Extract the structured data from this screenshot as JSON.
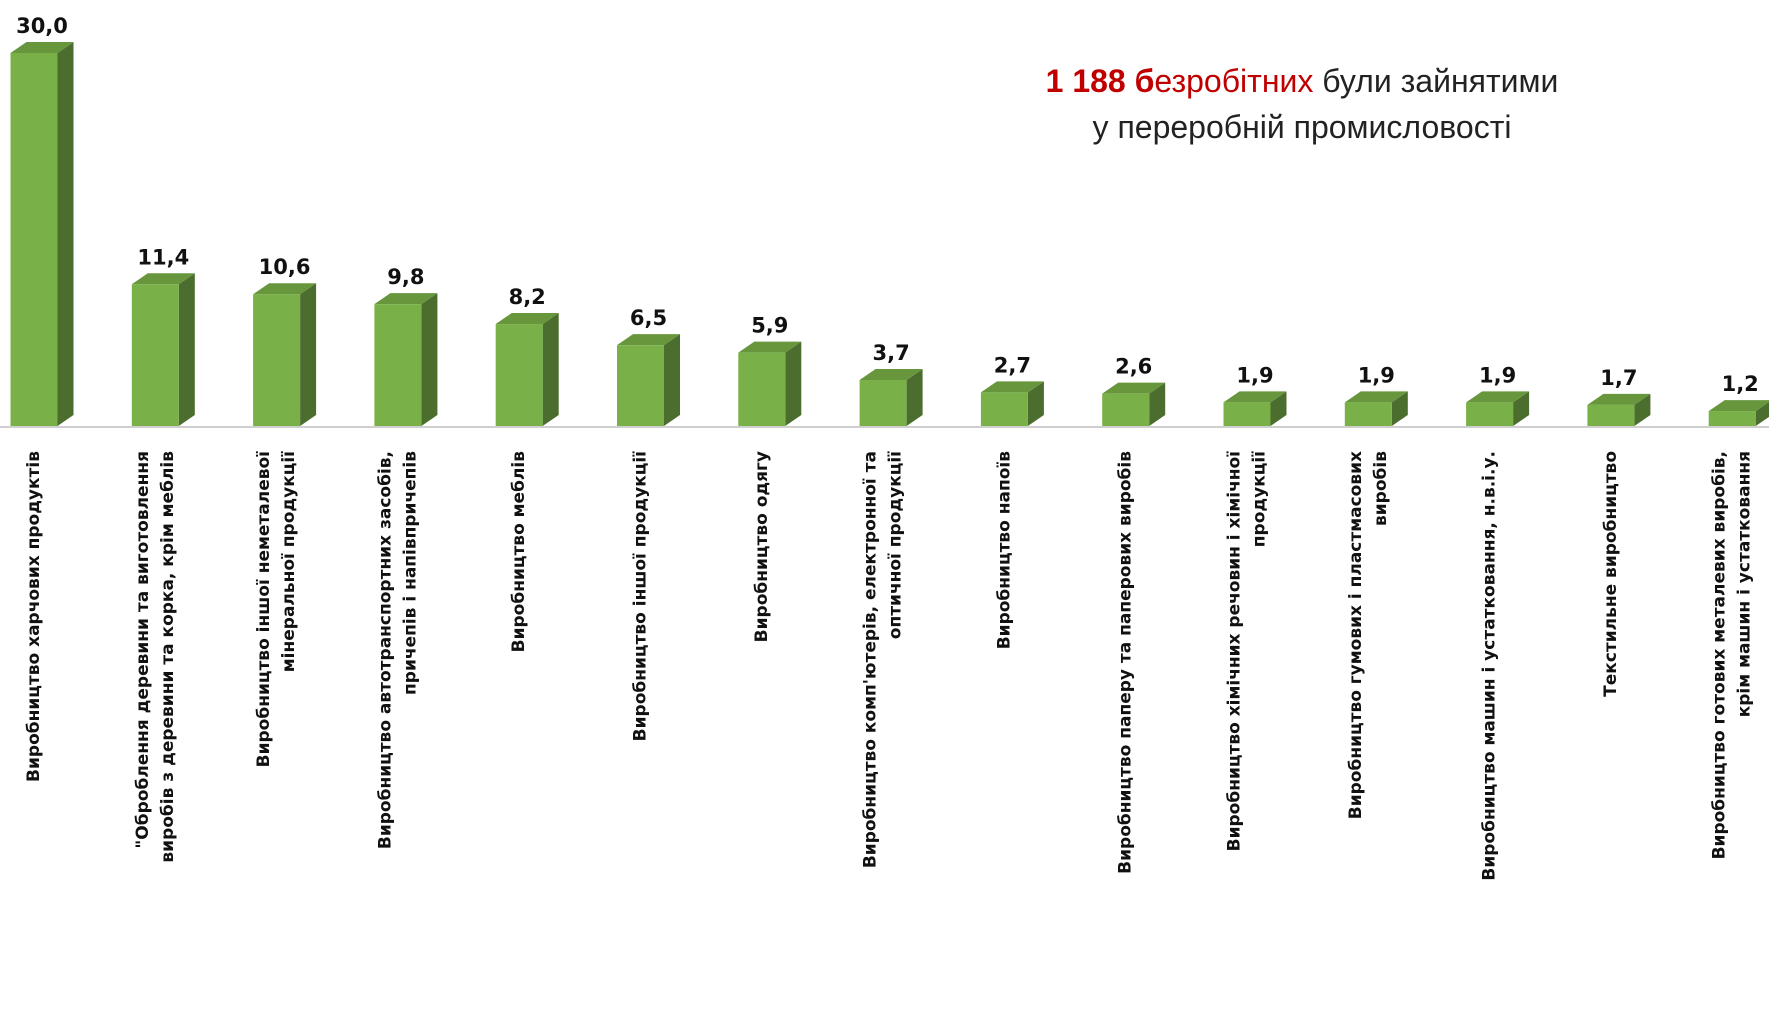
{
  "chart_data": {
    "type": "bar3d",
    "categories": [
      "Виробництво харчових продуктів",
      "\"Оброблення деревини та виготовлення\nвиробів з деревини та корка, крім меблів",
      "Виробництво іншої неметалевої\nмінеральної продукції",
      "Виробництво автотранспортних засобів,\nпричепів і напівпричепів",
      "Виробництво меблів",
      "Виробництво іншої продукції",
      "Виробництво одягу",
      "Виробництво комп'ютерів, електронної та\nоптичної продукції",
      "Виробництво напоїв",
      "Виробництво паперу та паперових виробів",
      "Виробництво хімічних речовин і хімічної\nпродукції",
      "Виробництво гумових і пластмасових\nвиробів",
      "Виробництво машин і устатковання, н.в.і.у.",
      "Текстильне виробництво",
      "Виробництво готових металевих виробів,\nкрім машин і устатковання"
    ],
    "values": [
      30.0,
      11.4,
      10.6,
      9.8,
      8.2,
      6.5,
      5.9,
      3.7,
      2.7,
      2.6,
      1.9,
      1.9,
      1.9,
      1.7,
      1.2
    ],
    "value_labels": [
      "30,0",
      "11,4",
      "10,6",
      "9,8",
      "8,2",
      "6,5",
      "5,9",
      "3,7",
      "2,7",
      "2,6",
      "1,9",
      "1,9",
      "1,9",
      "1,7",
      "1,2"
    ],
    "color": "#79b048",
    "annotation": [
      [
        {
          "text": "1 188 б",
          "color": "#c00000",
          "bold": true
        },
        {
          "text": "езробітних",
          "color": "#c00000",
          "bold": false
        },
        {
          "text": " були зайнятими",
          "color": "#222222",
          "bold": false
        }
      ],
      [
        {
          "text": "у переробній промисловості",
          "color": "#222222",
          "bold": false
        }
      ]
    ]
  }
}
